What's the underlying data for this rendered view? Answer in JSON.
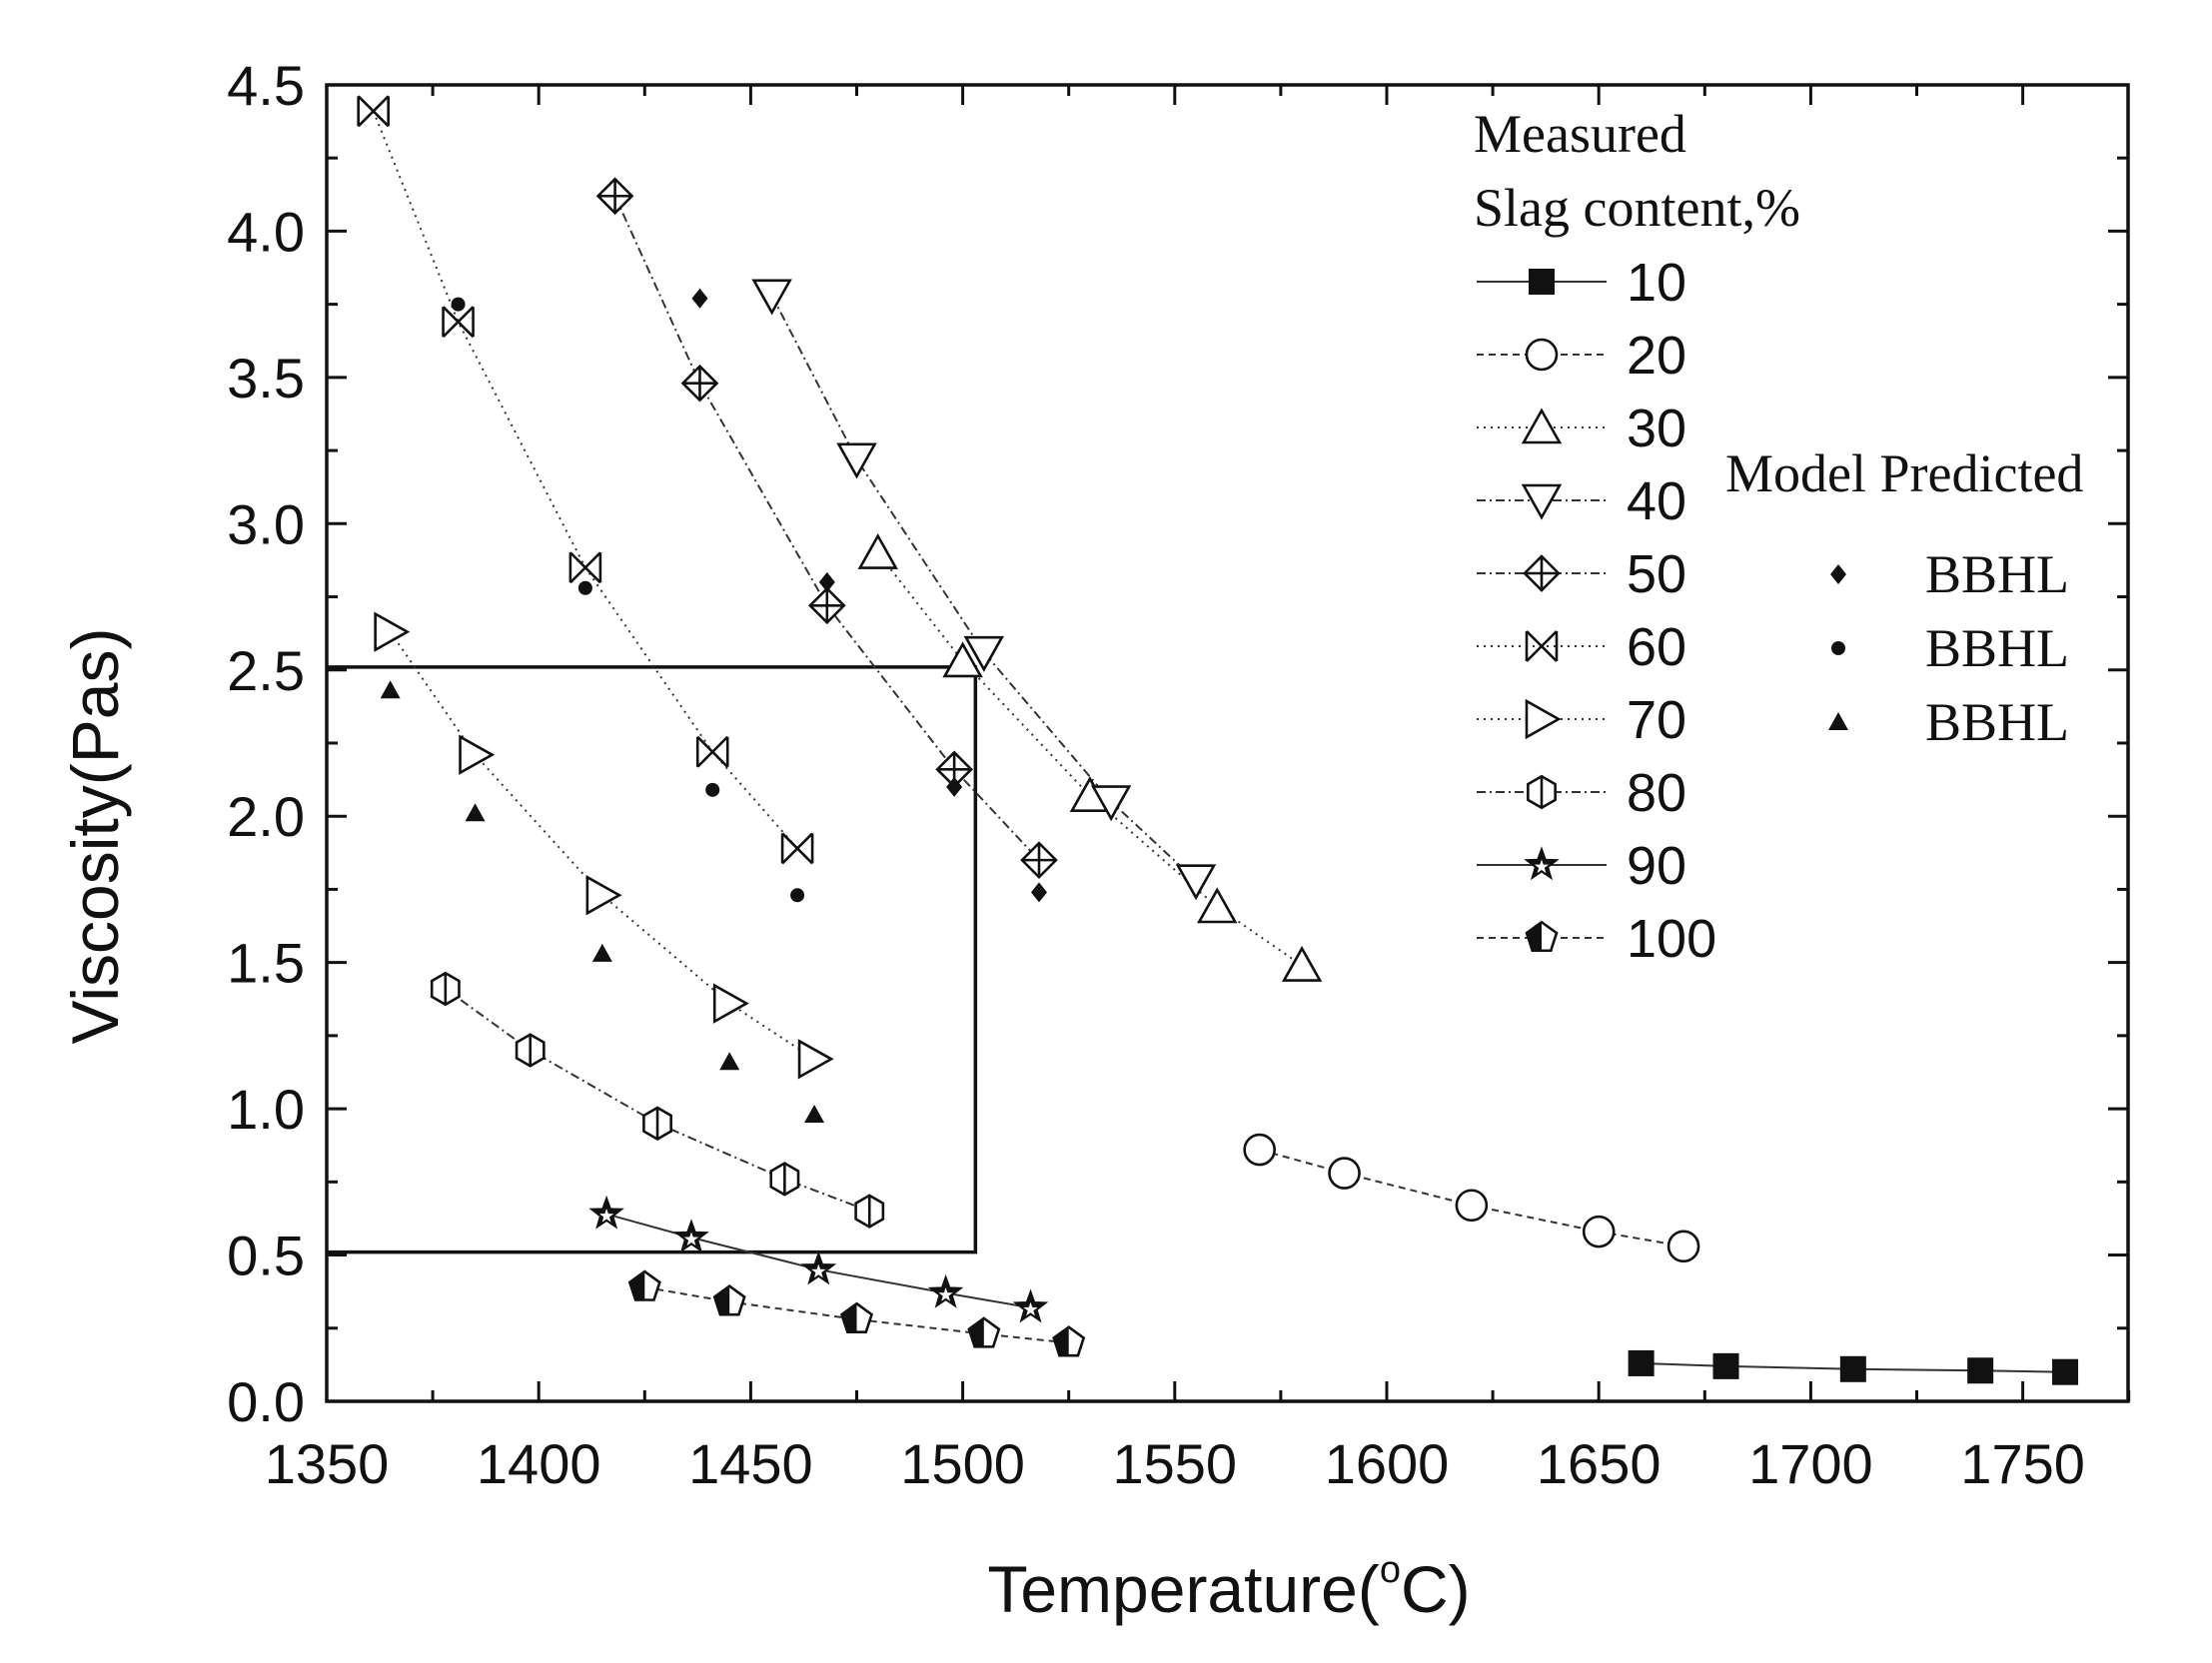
{
  "chart_data": {
    "type": "scatter",
    "xlabel": "Temperature(°C)",
    "xlabel_main": "Temperature(",
    "xlabel_degree": "o",
    "xlabel_unit": "C)",
    "ylabel": "Viscosity(Pas)",
    "xlim": [
      1350,
      1775
    ],
    "ylim": [
      0,
      4.5
    ],
    "xticks": [
      1350,
      1400,
      1450,
      1500,
      1550,
      1600,
      1650,
      1700,
      1750
    ],
    "yticks": [
      "0.0",
      "0.5",
      "1.0",
      "1.5",
      "2.0",
      "2.5",
      "3.0",
      "3.5",
      "4.0",
      "4.5"
    ],
    "grid": false,
    "legend": {
      "title1": "Measured",
      "title2": "Slag content,%",
      "model_title": "Model Predicted",
      "placement": "top-right"
    },
    "measured_series": [
      {
        "name": "10",
        "marker": "square",
        "line": "solid",
        "x": [
          1660,
          1680,
          1710,
          1740,
          1760
        ],
        "y": [
          0.13,
          0.12,
          0.11,
          0.105,
          0.1
        ]
      },
      {
        "name": "20",
        "marker": "circle",
        "line": "dashed",
        "x": [
          1570,
          1590,
          1620,
          1650,
          1670
        ],
        "y": [
          0.86,
          0.78,
          0.67,
          0.58,
          0.53
        ]
      },
      {
        "name": "30",
        "marker": "triangle-up",
        "line": "dotted",
        "x": [
          1480,
          1500,
          1530,
          1560,
          1580
        ],
        "y": [
          2.9,
          2.53,
          2.07,
          1.69,
          1.49
        ]
      },
      {
        "name": "40",
        "marker": "triangle-down",
        "line": "dashdot",
        "x": [
          1455,
          1475,
          1505,
          1535,
          1555
        ],
        "y": [
          3.78,
          3.22,
          2.56,
          2.05,
          1.78
        ]
      },
      {
        "name": "50",
        "marker": "diamond-plus",
        "line": "dashdot",
        "x": [
          1418,
          1438,
          1468,
          1498,
          1518
        ],
        "y": [
          4.12,
          3.48,
          2.72,
          2.16,
          1.85
        ]
      },
      {
        "name": "60",
        "marker": "x-square",
        "line": "dotted",
        "x": [
          1361,
          1381,
          1411,
          1441,
          1461
        ],
        "y": [
          4.41,
          3.69,
          2.85,
          2.22,
          1.89
        ]
      },
      {
        "name": "70",
        "marker": "triangle-right",
        "line": "dotted",
        "x": [
          1365,
          1385,
          1415,
          1445,
          1465
        ],
        "y": [
          2.63,
          2.21,
          1.73,
          1.36,
          1.17
        ]
      },
      {
        "name": "80",
        "marker": "hexagon",
        "line": "dashdot",
        "x": [
          1378,
          1398,
          1428,
          1458,
          1478
        ],
        "y": [
          1.41,
          1.2,
          0.95,
          0.76,
          0.65
        ]
      },
      {
        "name": "90",
        "marker": "star",
        "line": "solid",
        "x": [
          1416,
          1436,
          1466,
          1496,
          1516
        ],
        "y": [
          0.64,
          0.56,
          0.45,
          0.37,
          0.32
        ]
      },
      {
        "name": "100",
        "marker": "pentagon",
        "line": "dashed",
        "x": [
          1425,
          1445,
          1475,
          1505,
          1525
        ],
        "y": [
          0.39,
          0.34,
          0.28,
          0.23,
          0.2
        ]
      }
    ],
    "predicted_series": [
      {
        "name": "BBHL",
        "marker": "diamond",
        "x": [
          1438,
          1468,
          1498,
          1518
        ],
        "y": [
          3.77,
          2.8,
          2.1,
          1.74
        ]
      },
      {
        "name": "BBHL",
        "marker": "dot",
        "x": [
          1381,
          1411,
          1441,
          1461
        ],
        "y": [
          3.75,
          2.78,
          2.09,
          1.73
        ]
      },
      {
        "name": "BBHL",
        "marker": "triangle-filled",
        "x": [
          1365,
          1385,
          1415,
          1445,
          1465
        ],
        "y": [
          2.43,
          2.01,
          1.53,
          1.16,
          0.98
        ]
      }
    ],
    "highlight_box": {
      "x": [
        1350,
        1503
      ],
      "y": [
        0.51,
        2.51
      ]
    }
  }
}
